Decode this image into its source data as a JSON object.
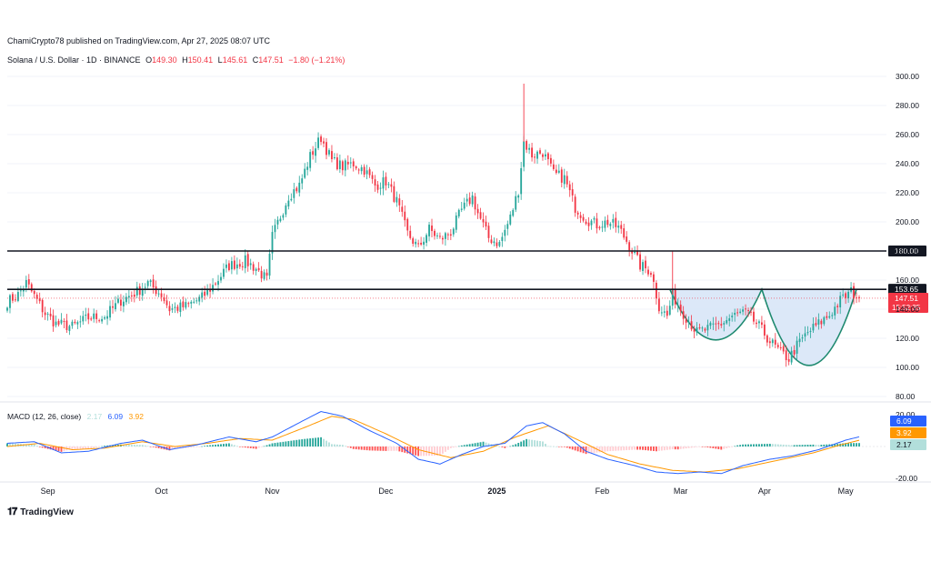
{
  "header": {
    "published": "ChamiCrypto78 published on TradingView.com, Apr 27, 2025 08:07 UTC",
    "symbol": "Solana / U.S. Dollar · 1D · BINANCE",
    "o_label": "O",
    "o_value": "149.30",
    "h_label": "H",
    "h_value": "150.41",
    "l_label": "L",
    "l_value": "145.61",
    "c_label": "C",
    "c_value": "147.51",
    "change": "−1.80 (−1.21%)"
  },
  "macd_legend": {
    "label": "MACD (12, 26, close)",
    "hist": "2.17",
    "macd": "6.09",
    "signal": "3.92"
  },
  "footer": {
    "brand": "TradingView"
  },
  "colors": {
    "up": "#26a69a",
    "down": "#f23645",
    "macd": "#2962ff",
    "signal": "#ff9800",
    "hist_up_strong": "#26a69a",
    "hist_up_weak": "#b2dfdb",
    "hist_down_strong": "#ff5252",
    "hist_down_weak": "#ffcdd2",
    "pattern_fill": "#d6e4f7",
    "pattern_line": "#1f8a70"
  },
  "chart_data": [
    {
      "type": "candlestick",
      "title": "Solana / U.S. Dollar · 1D · BINANCE",
      "x_ticks": [
        "Sep",
        "Oct",
        "Nov",
        "Dec",
        "2025",
        "Feb",
        "Mar",
        "Apr",
        "May"
      ],
      "y_ticks": [
        "80.00",
        "100.00",
        "120.00",
        "140.00",
        "160.00",
        "180.00",
        "200.00",
        "220.00",
        "240.00",
        "260.00",
        "280.00",
        "300.00"
      ],
      "ylim": [
        80,
        300
      ],
      "horizontal_levels": [
        {
          "value": 180.0,
          "label": "180.00"
        },
        {
          "value": 153.65,
          "label": "153.65"
        }
      ],
      "last_price": {
        "value": 147.51,
        "label": "147.51",
        "countdown": "15:52:35"
      },
      "path_points": [
        {
          "i": 0,
          "v": 145
        },
        {
          "i": 4,
          "v": 150
        },
        {
          "i": 7,
          "v": 158
        },
        {
          "i": 9,
          "v": 152
        },
        {
          "i": 14,
          "v": 137
        },
        {
          "i": 18,
          "v": 130
        },
        {
          "i": 24,
          "v": 128
        },
        {
          "i": 30,
          "v": 134
        },
        {
          "i": 36,
          "v": 135
        },
        {
          "i": 42,
          "v": 146
        },
        {
          "i": 48,
          "v": 152
        },
        {
          "i": 52,
          "v": 158
        },
        {
          "i": 57,
          "v": 150
        },
        {
          "i": 60,
          "v": 140
        },
        {
          "i": 66,
          "v": 142
        },
        {
          "i": 72,
          "v": 148
        },
        {
          "i": 76,
          "v": 156
        },
        {
          "i": 82,
          "v": 170
        },
        {
          "i": 88,
          "v": 173
        },
        {
          "i": 92,
          "v": 168
        },
        {
          "i": 96,
          "v": 160
        },
        {
          "i": 98,
          "v": 190
        },
        {
          "i": 104,
          "v": 218
        },
        {
          "i": 108,
          "v": 225
        },
        {
          "i": 112,
          "v": 245
        },
        {
          "i": 116,
          "v": 258
        },
        {
          "i": 120,
          "v": 242
        },
        {
          "i": 124,
          "v": 238
        },
        {
          "i": 128,
          "v": 240
        },
        {
          "i": 132,
          "v": 236
        },
        {
          "i": 136,
          "v": 225
        },
        {
          "i": 140,
          "v": 228
        },
        {
          "i": 144,
          "v": 214
        },
        {
          "i": 148,
          "v": 192
        },
        {
          "i": 152,
          "v": 182
        },
        {
          "i": 156,
          "v": 195
        },
        {
          "i": 160,
          "v": 188
        },
        {
          "i": 164,
          "v": 193
        },
        {
          "i": 168,
          "v": 208
        },
        {
          "i": 172,
          "v": 217
        },
        {
          "i": 174,
          "v": 206
        },
        {
          "i": 178,
          "v": 189
        },
        {
          "i": 182,
          "v": 185
        },
        {
          "i": 186,
          "v": 203
        },
        {
          "i": 189,
          "v": 222
        },
        {
          "i": 191,
          "v": 255
        },
        {
          "i": 194,
          "v": 246
        },
        {
          "i": 198,
          "v": 248
        },
        {
          "i": 202,
          "v": 233
        },
        {
          "i": 206,
          "v": 230
        },
        {
          "i": 210,
          "v": 210
        },
        {
          "i": 214,
          "v": 202
        },
        {
          "i": 218,
          "v": 198
        },
        {
          "i": 222,
          "v": 200
        },
        {
          "i": 226,
          "v": 196
        },
        {
          "i": 230,
          "v": 184
        },
        {
          "i": 234,
          "v": 170
        },
        {
          "i": 238,
          "v": 166
        },
        {
          "i": 241,
          "v": 142
        },
        {
          "i": 244,
          "v": 135
        },
        {
          "i": 246,
          "v": 150
        },
        {
          "i": 249,
          "v": 140
        },
        {
          "i": 252,
          "v": 132
        },
        {
          "i": 255,
          "v": 124
        },
        {
          "i": 260,
          "v": 127
        },
        {
          "i": 264,
          "v": 130
        },
        {
          "i": 268,
          "v": 135
        },
        {
          "i": 272,
          "v": 138
        },
        {
          "i": 274,
          "v": 136
        },
        {
          "i": 278,
          "v": 128
        },
        {
          "i": 282,
          "v": 118
        },
        {
          "i": 286,
          "v": 110
        },
        {
          "i": 289,
          "v": 106
        },
        {
          "i": 292,
          "v": 115
        },
        {
          "i": 296,
          "v": 124
        },
        {
          "i": 300,
          "v": 130
        },
        {
          "i": 304,
          "v": 136
        },
        {
          "i": 308,
          "v": 146
        },
        {
          "i": 312,
          "v": 152
        },
        {
          "i": 315,
          "v": 147.51
        }
      ],
      "cup_handle_pattern": {
        "rim_left": {
          "i": 245,
          "v": 153.65
        },
        "cup_bottom": {
          "i": 263,
          "v": 118
        },
        "cup_peak": {
          "i": 279,
          "v": 153.65
        },
        "handle_bottom": {
          "i": 292,
          "v": 100
        },
        "rim_right": {
          "i": 314,
          "v": 153.65
        }
      }
    },
    {
      "type": "line",
      "title": "MACD (12, 26, close)",
      "y_ticks": [
        "20.00",
        "-20.00"
      ],
      "ylim": [
        -25,
        25
      ],
      "last_values": {
        "macd": 6.09,
        "signal": 3.92,
        "hist": 2.17
      },
      "macd_points": [
        {
          "i": 0,
          "v": 2
        },
        {
          "i": 10,
          "v": 3
        },
        {
          "i": 20,
          "v": -4
        },
        {
          "i": 30,
          "v": -3
        },
        {
          "i": 42,
          "v": 2
        },
        {
          "i": 50,
          "v": 4
        },
        {
          "i": 60,
          "v": -2
        },
        {
          "i": 70,
          "v": 1
        },
        {
          "i": 82,
          "v": 6
        },
        {
          "i": 92,
          "v": 3
        },
        {
          "i": 98,
          "v": 6
        },
        {
          "i": 108,
          "v": 15
        },
        {
          "i": 116,
          "v": 22
        },
        {
          "i": 124,
          "v": 19
        },
        {
          "i": 134,
          "v": 10
        },
        {
          "i": 144,
          "v": 2
        },
        {
          "i": 152,
          "v": -8
        },
        {
          "i": 160,
          "v": -11
        },
        {
          "i": 168,
          "v": -5
        },
        {
          "i": 176,
          "v": 0
        },
        {
          "i": 184,
          "v": 2
        },
        {
          "i": 192,
          "v": 13
        },
        {
          "i": 198,
          "v": 15
        },
        {
          "i": 206,
          "v": 8
        },
        {
          "i": 214,
          "v": -3
        },
        {
          "i": 222,
          "v": -8
        },
        {
          "i": 232,
          "v": -12
        },
        {
          "i": 240,
          "v": -16
        },
        {
          "i": 248,
          "v": -17
        },
        {
          "i": 256,
          "v": -16
        },
        {
          "i": 264,
          "v": -17
        },
        {
          "i": 272,
          "v": -12
        },
        {
          "i": 282,
          "v": -8
        },
        {
          "i": 290,
          "v": -6
        },
        {
          "i": 300,
          "v": -2
        },
        {
          "i": 310,
          "v": 4
        },
        {
          "i": 315,
          "v": 6.09
        }
      ],
      "signal_points": [
        {
          "i": 0,
          "v": 0
        },
        {
          "i": 12,
          "v": 2
        },
        {
          "i": 24,
          "v": -2
        },
        {
          "i": 36,
          "v": -1
        },
        {
          "i": 50,
          "v": 3
        },
        {
          "i": 62,
          "v": 0
        },
        {
          "i": 74,
          "v": 2
        },
        {
          "i": 86,
          "v": 5
        },
        {
          "i": 98,
          "v": 4
        },
        {
          "i": 110,
          "v": 12
        },
        {
          "i": 120,
          "v": 19
        },
        {
          "i": 128,
          "v": 17
        },
        {
          "i": 140,
          "v": 8
        },
        {
          "i": 152,
          "v": -2
        },
        {
          "i": 164,
          "v": -7
        },
        {
          "i": 176,
          "v": -3
        },
        {
          "i": 188,
          "v": 6
        },
        {
          "i": 200,
          "v": 13
        },
        {
          "i": 210,
          "v": 5
        },
        {
          "i": 222,
          "v": -5
        },
        {
          "i": 234,
          "v": -11
        },
        {
          "i": 246,
          "v": -15
        },
        {
          "i": 258,
          "v": -16
        },
        {
          "i": 270,
          "v": -14
        },
        {
          "i": 284,
          "v": -9
        },
        {
          "i": 298,
          "v": -4
        },
        {
          "i": 308,
          "v": 1
        },
        {
          "i": 315,
          "v": 3.92
        }
      ]
    }
  ]
}
